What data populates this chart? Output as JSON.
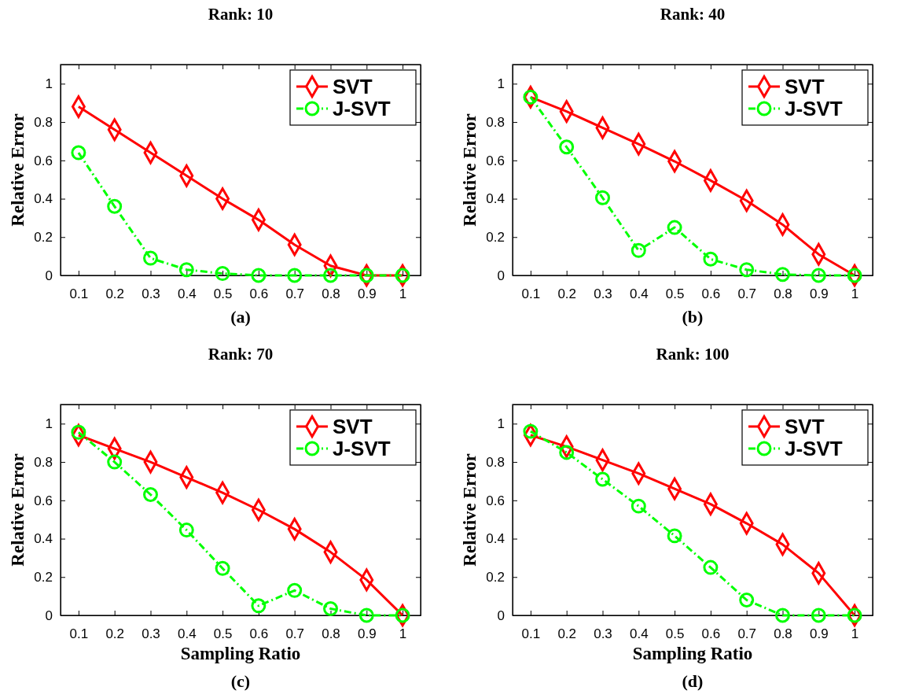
{
  "chart_data": [
    {
      "type": "line",
      "title": "Rank: 10",
      "ylabel": "Relative Error",
      "annotations": [
        "(a)"
      ],
      "x": [
        0.1,
        0.2,
        0.3,
        0.4,
        0.5,
        0.6,
        0.7,
        0.8,
        0.9,
        1
      ],
      "xlim": [
        0.05,
        1.05
      ],
      "xticks": [
        0.1,
        0.2,
        0.3,
        0.4,
        0.5,
        0.6,
        0.7,
        0.8,
        0.9,
        1
      ],
      "ylim": [
        0,
        1.1
      ],
      "yticks": [
        0,
        0.2,
        0.4,
        0.6,
        0.8,
        1
      ],
      "legend": "top right",
      "grid": false,
      "series": [
        {
          "name": "SVT",
          "color": "#ff0000",
          "marker": "diamond",
          "line_style": "solid",
          "values": [
            0.88,
            0.76,
            0.64,
            0.52,
            0.4,
            0.29,
            0.16,
            0.05,
            0,
            0
          ]
        },
        {
          "name": "J-SVT",
          "color": "#00ff00",
          "marker": "circle",
          "line_style": "dashed",
          "values": [
            0.64,
            0.36,
            0.09,
            0.03,
            0.01,
            0,
            0,
            0,
            0,
            0
          ]
        }
      ]
    },
    {
      "type": "line",
      "title": "Rank: 40",
      "ylabel": "Relative Error",
      "annotations": [
        "(b)"
      ],
      "x": [
        0.1,
        0.2,
        0.3,
        0.4,
        0.5,
        0.6,
        0.7,
        0.8,
        0.9,
        1
      ],
      "xlim": [
        0.05,
        1.05
      ],
      "xticks": [
        0.1,
        0.2,
        0.3,
        0.4,
        0.5,
        0.6,
        0.7,
        0.8,
        0.9,
        1
      ],
      "ylim": [
        0,
        1.1
      ],
      "yticks": [
        0,
        0.2,
        0.4,
        0.6,
        0.8,
        1
      ],
      "legend": "top right",
      "grid": false,
      "series": [
        {
          "name": "SVT",
          "color": "#ff0000",
          "marker": "diamond",
          "line_style": "solid",
          "values": [
            0.93,
            0.855,
            0.77,
            0.685,
            0.595,
            0.495,
            0.39,
            0.265,
            0.11,
            0
          ]
        },
        {
          "name": "J-SVT",
          "color": "#00ff00",
          "marker": "circle",
          "line_style": "dashed",
          "values": [
            0.93,
            0.67,
            0.405,
            0.13,
            0.25,
            0.085,
            0.03,
            0.005,
            0,
            0
          ]
        }
      ]
    },
    {
      "type": "line",
      "title": "Rank: 70",
      "xlabel": "Sampling Ratio",
      "ylabel": "Relative Error",
      "annotations": [
        "(c)"
      ],
      "x": [
        0.1,
        0.2,
        0.3,
        0.4,
        0.5,
        0.6,
        0.7,
        0.8,
        0.9,
        1
      ],
      "xlim": [
        0.05,
        1.05
      ],
      "xticks": [
        0.1,
        0.2,
        0.3,
        0.4,
        0.5,
        0.6,
        0.7,
        0.8,
        0.9,
        1
      ],
      "ylim": [
        0,
        1.1
      ],
      "yticks": [
        0,
        0.2,
        0.4,
        0.6,
        0.8,
        1
      ],
      "legend": "top right",
      "grid": false,
      "series": [
        {
          "name": "SVT",
          "color": "#ff0000",
          "marker": "diamond",
          "line_style": "solid",
          "values": [
            0.94,
            0.87,
            0.8,
            0.72,
            0.64,
            0.55,
            0.45,
            0.33,
            0.185,
            0
          ]
        },
        {
          "name": "J-SVT",
          "color": "#00ff00",
          "marker": "circle",
          "line_style": "dashed",
          "values": [
            0.955,
            0.8,
            0.63,
            0.445,
            0.245,
            0.05,
            0.13,
            0.035,
            0,
            0
          ]
        }
      ]
    },
    {
      "type": "line",
      "title": "Rank: 100",
      "xlabel": "Sampling Ratio",
      "ylabel": "Relative Error",
      "annotations": [
        "(d)"
      ],
      "x": [
        0.1,
        0.2,
        0.3,
        0.4,
        0.5,
        0.6,
        0.7,
        0.8,
        0.9,
        1
      ],
      "xlim": [
        0.05,
        1.05
      ],
      "xticks": [
        0.1,
        0.2,
        0.3,
        0.4,
        0.5,
        0.6,
        0.7,
        0.8,
        0.9,
        1
      ],
      "ylim": [
        0,
        1.1
      ],
      "yticks": [
        0,
        0.2,
        0.4,
        0.6,
        0.8,
        1
      ],
      "legend": "top right",
      "grid": false,
      "series": [
        {
          "name": "SVT",
          "color": "#ff0000",
          "marker": "diamond",
          "line_style": "solid",
          "values": [
            0.94,
            0.88,
            0.81,
            0.74,
            0.66,
            0.58,
            0.48,
            0.37,
            0.22,
            0
          ]
        },
        {
          "name": "J-SVT",
          "color": "#00ff00",
          "marker": "circle",
          "line_style": "dashed",
          "values": [
            0.96,
            0.85,
            0.71,
            0.57,
            0.415,
            0.25,
            0.08,
            0,
            0,
            0
          ]
        }
      ]
    }
  ]
}
